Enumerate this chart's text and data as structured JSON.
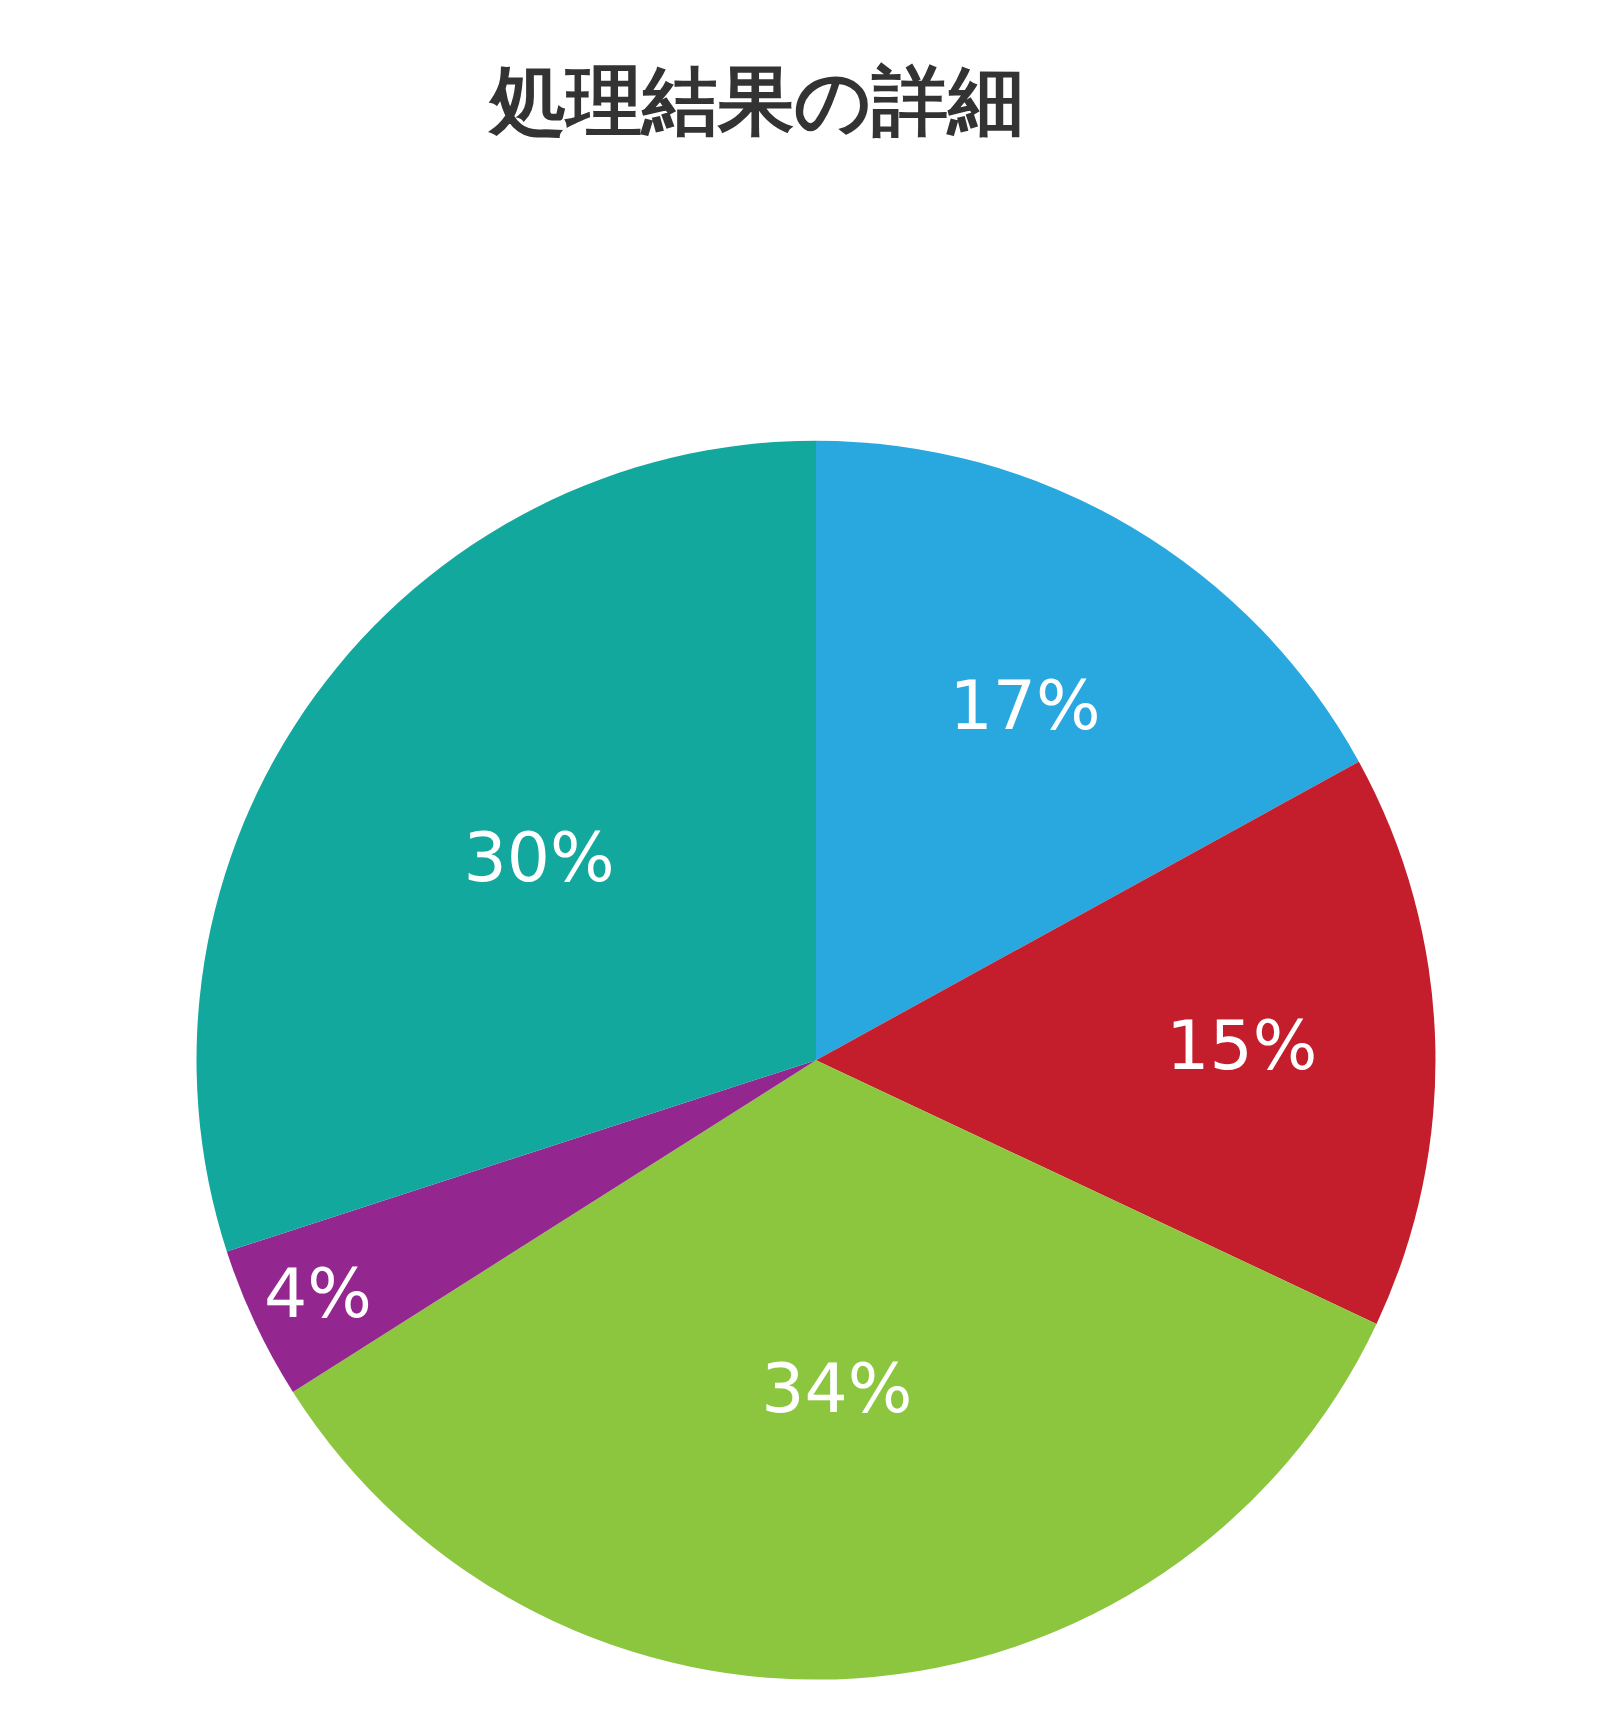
{
  "chart_data": {
    "type": "pie",
    "title": "処理結果の詳細",
    "categories": [
      null,
      null,
      null,
      null,
      null
    ],
    "values": [
      17,
      15,
      34,
      4,
      30
    ],
    "value_labels": [
      "17%",
      "15%",
      "34%",
      "4%",
      "30%"
    ],
    "colors": [
      "#29a8e0",
      "#c41e2d",
      "#8cc63f",
      "#93278f",
      "#13a89e"
    ],
    "legend": false
  }
}
